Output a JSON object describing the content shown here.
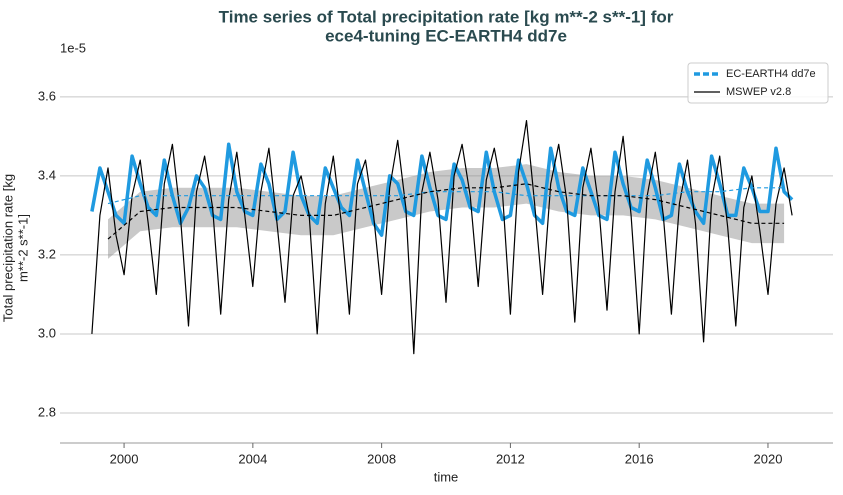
{
  "chart_data": {
    "type": "line",
    "title": [
      "Time series of Total precipitation rate [kg m**-2 s**-1] for",
      "ece4-tuning EC-EARTH4 dd7e"
    ],
    "y_label": [
      "Total precipitation rate [kg",
      "m**-2 s**-1]"
    ],
    "x_label": "time",
    "y_offset_label": "1e-5",
    "xlim": [
      1998.01,
      2022.02
    ],
    "ylim": [
      2.724,
      3.706
    ],
    "xticks": [
      2000,
      2004,
      2008,
      2012,
      2016,
      2020
    ],
    "yticks": [
      2.8,
      {
        "value": 3,
        "label": "3.0"
      },
      3.2,
      3.4,
      3.6
    ],
    "grid": true,
    "legend": "upper right",
    "x": [
      1999,
      1999.25,
      1999.5,
      1999.75,
      2000,
      2000.25,
      2000.5,
      2000.75,
      2001,
      2001.25,
      2001.5,
      2001.75,
      2002,
      2002.25,
      2002.5,
      2002.75,
      2003,
      2003.25,
      2003.5,
      2003.75,
      2004,
      2004.25,
      2004.5,
      2004.75,
      2005,
      2005.25,
      2005.5,
      2005.75,
      2006,
      2006.25,
      2006.5,
      2006.75,
      2007,
      2007.25,
      2007.5,
      2007.75,
      2008,
      2008.25,
      2008.5,
      2008.75,
      2009,
      2009.25,
      2009.5,
      2009.75,
      2010,
      2010.25,
      2010.5,
      2010.75,
      2011,
      2011.25,
      2011.5,
      2011.75,
      2012,
      2012.25,
      2012.5,
      2012.75,
      2013,
      2013.25,
      2013.5,
      2013.75,
      2014,
      2014.25,
      2014.5,
      2014.75,
      2015,
      2015.25,
      2015.5,
      2015.75,
      2016,
      2016.25,
      2016.5,
      2016.75,
      2017,
      2017.25,
      2017.5,
      2017.75,
      2018,
      2018.25,
      2018.5,
      2018.75,
      2019,
      2019.25,
      2019.5,
      2019.75,
      2020,
      2020.25,
      2020.5,
      2020.75
    ],
    "series": [
      {
        "name": "EC-EARTH4 dd7e",
        "color": "#1f9ae0",
        "line_width": 3.5,
        "values": [
          3.31,
          3.42,
          3.36,
          3.3,
          3.28,
          3.45,
          3.38,
          3.32,
          3.3,
          3.44,
          3.35,
          3.28,
          3.32,
          3.4,
          3.37,
          3.3,
          3.29,
          3.48,
          3.36,
          3.31,
          3.3,
          3.43,
          3.38,
          3.29,
          3.31,
          3.46,
          3.35,
          3.3,
          3.28,
          3.42,
          3.37,
          3.32,
          3.3,
          3.44,
          3.36,
          3.28,
          3.25,
          3.4,
          3.38,
          3.31,
          3.3,
          3.45,
          3.37,
          3.3,
          3.29,
          3.43,
          3.39,
          3.32,
          3.31,
          3.46,
          3.36,
          3.29,
          3.3,
          3.44,
          3.38,
          3.3,
          3.28,
          3.47,
          3.37,
          3.31,
          3.3,
          3.42,
          3.36,
          3.3,
          3.29,
          3.46,
          3.38,
          3.32,
          3.31,
          3.44,
          3.37,
          3.29,
          3.3,
          3.43,
          3.36,
          3.31,
          3.28,
          3.45,
          3.38,
          3.3,
          3.3,
          3.42,
          3.37,
          3.31,
          3.31,
          3.47,
          3.36,
          3.34
        ],
        "trend": {
          "x": [
            1999.5,
            2000.5,
            2001.5,
            2002.5,
            2003.5,
            2004.5,
            2005.5,
            2006.5,
            2007.5,
            2008.5,
            2009.5,
            2010.5,
            2011.5,
            2012.5,
            2013.5,
            2014.5,
            2015.5,
            2016.5,
            2017.5,
            2018.5,
            2019.5,
            2020.5
          ],
          "values": [
            3.33,
            3.35,
            3.35,
            3.35,
            3.35,
            3.35,
            3.35,
            3.35,
            3.35,
            3.35,
            3.36,
            3.36,
            3.36,
            3.35,
            3.35,
            3.35,
            3.35,
            3.35,
            3.36,
            3.36,
            3.37,
            3.37
          ]
        }
      },
      {
        "name": "MSWEP v2.8",
        "color": "#000000",
        "line_width": 1.2,
        "values": [
          3.0,
          3.3,
          3.42,
          3.25,
          3.15,
          3.35,
          3.44,
          3.28,
          3.1,
          3.38,
          3.48,
          3.3,
          3.02,
          3.36,
          3.45,
          3.32,
          3.05,
          3.34,
          3.46,
          3.3,
          3.12,
          3.36,
          3.47,
          3.28,
          3.08,
          3.35,
          3.4,
          3.3,
          3.0,
          3.33,
          3.45,
          3.28,
          3.05,
          3.38,
          3.44,
          3.3,
          3.1,
          3.37,
          3.49,
          3.32,
          2.95,
          3.36,
          3.46,
          3.34,
          3.08,
          3.4,
          3.48,
          3.35,
          3.12,
          3.39,
          3.47,
          3.36,
          3.05,
          3.41,
          3.54,
          3.33,
          3.1,
          3.38,
          3.48,
          3.34,
          3.03,
          3.37,
          3.47,
          3.32,
          3.06,
          3.36,
          3.5,
          3.3,
          3.0,
          3.35,
          3.46,
          3.3,
          3.05,
          3.33,
          3.44,
          3.28,
          2.98,
          3.34,
          3.45,
          3.27,
          3.02,
          3.32,
          3.4,
          3.26,
          3.1,
          3.33,
          3.42,
          3.3
        ],
        "trend": {
          "x": [
            1999.5,
            2000.5,
            2001.5,
            2002.5,
            2003.5,
            2004.5,
            2005.5,
            2006.5,
            2007.5,
            2008.5,
            2009.5,
            2010.5,
            2011.5,
            2012.5,
            2013.5,
            2014.5,
            2015.5,
            2016.5,
            2017.5,
            2018.5,
            2019.5,
            2020.5
          ],
          "values": [
            3.24,
            3.31,
            3.32,
            3.32,
            3.32,
            3.31,
            3.3,
            3.3,
            3.32,
            3.34,
            3.36,
            3.37,
            3.37,
            3.38,
            3.36,
            3.35,
            3.35,
            3.34,
            3.32,
            3.3,
            3.28,
            3.28
          ],
          "lower": [
            3.19,
            3.26,
            3.27,
            3.27,
            3.27,
            3.26,
            3.25,
            3.25,
            3.27,
            3.29,
            3.31,
            3.32,
            3.32,
            3.33,
            3.31,
            3.3,
            3.3,
            3.29,
            3.27,
            3.25,
            3.23,
            3.23
          ],
          "upper": [
            3.29,
            3.36,
            3.37,
            3.37,
            3.37,
            3.36,
            3.35,
            3.35,
            3.37,
            3.39,
            3.41,
            3.42,
            3.42,
            3.43,
            3.41,
            3.4,
            3.4,
            3.39,
            3.37,
            3.35,
            3.33,
            3.33
          ]
        }
      }
    ]
  }
}
